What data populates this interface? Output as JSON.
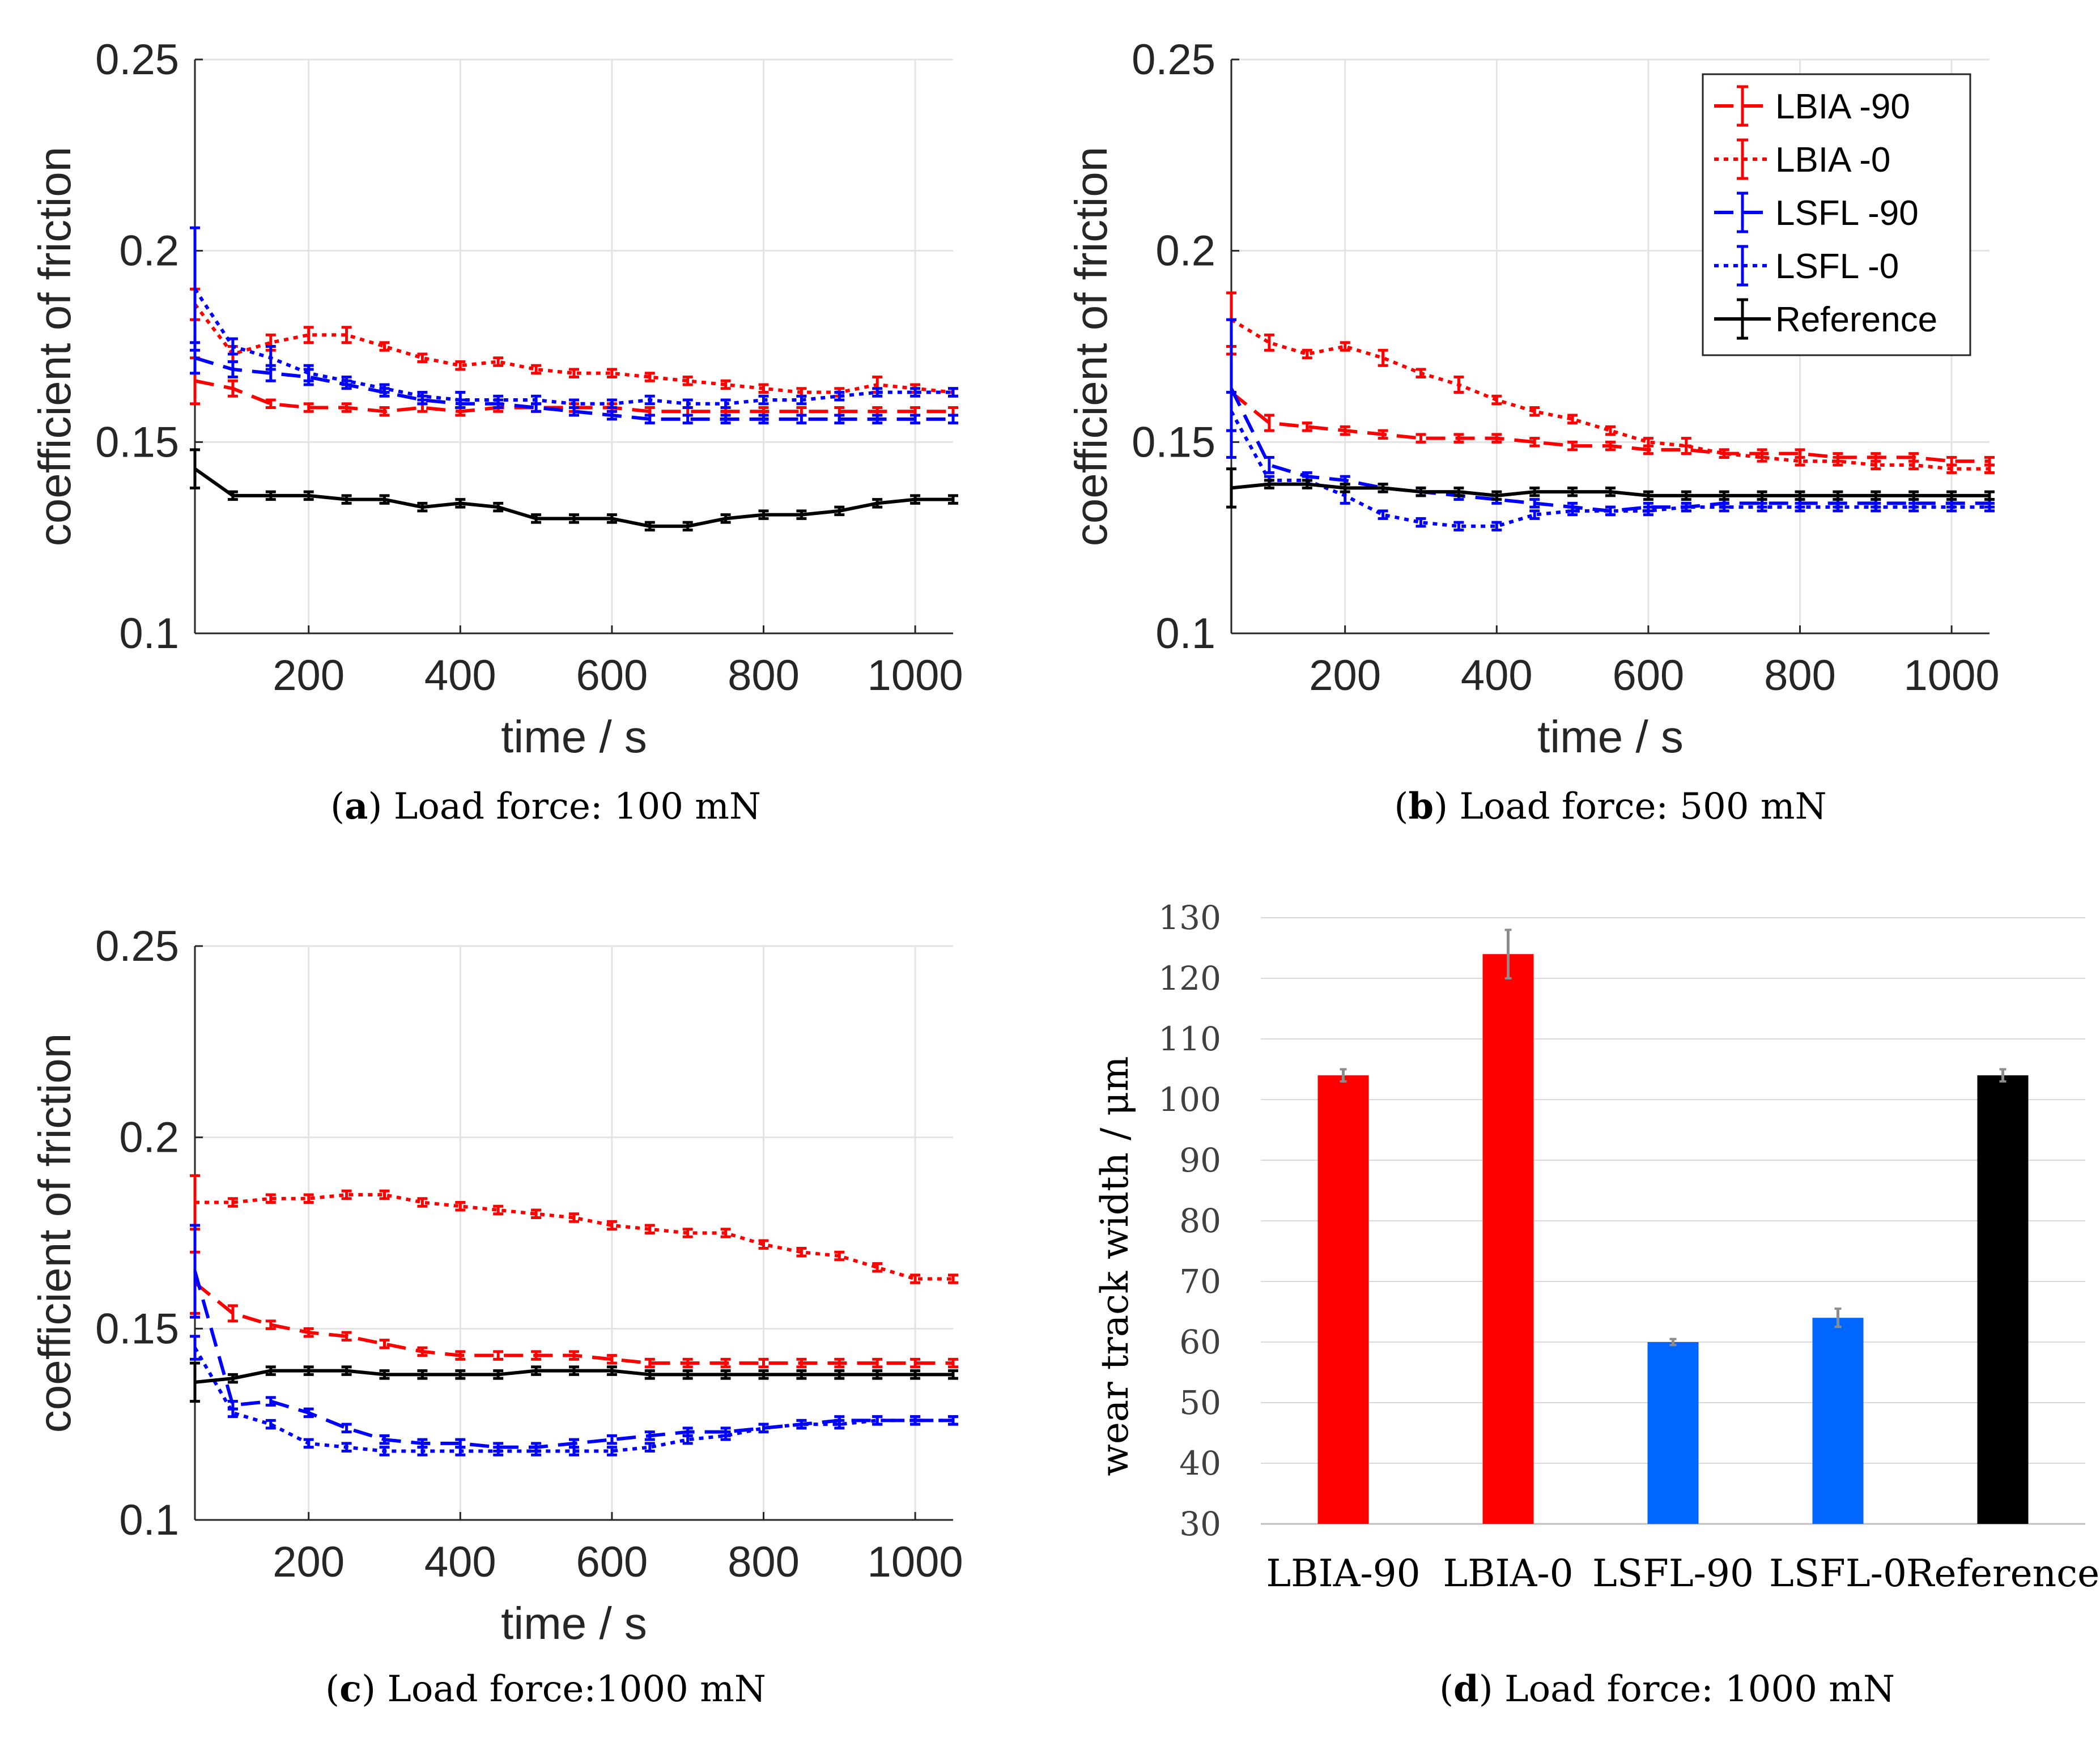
{
  "chart_data": [
    {
      "id": "a",
      "type": "line",
      "caption_letter": "a",
      "caption_text": "Load force: 100 mN",
      "xlabel": "time / s",
      "ylabel": "coefficient of friction",
      "xlim": [
        50,
        1050
      ],
      "ylim": [
        0.1,
        0.25
      ],
      "xticks": [
        200,
        400,
        600,
        800,
        1000
      ],
      "yticks": [
        0.1,
        0.15,
        0.2,
        0.25
      ],
      "ytick_labels": [
        "0.1",
        "0.15",
        "0.2",
        "0.25"
      ],
      "grid": true,
      "x": [
        50,
        100,
        150,
        200,
        250,
        300,
        350,
        400,
        450,
        500,
        550,
        600,
        650,
        700,
        750,
        800,
        850,
        900,
        950,
        1000,
        1050
      ],
      "series": [
        {
          "name": "LBIA -90",
          "color": "#ff0000",
          "dash": "dash",
          "values": [
            0.166,
            0.164,
            0.16,
            0.159,
            0.159,
            0.158,
            0.159,
            0.158,
            0.159,
            0.159,
            0.159,
            0.159,
            0.158,
            0.158,
            0.158,
            0.158,
            0.158,
            0.158,
            0.158,
            0.158,
            0.158
          ],
          "err": [
            0.006,
            0.002,
            0.001,
            0.001,
            0.001,
            0.001,
            0.001,
            0.001,
            0.001,
            0.001,
            0.001,
            0.001,
            0.001,
            0.001,
            0.001,
            0.001,
            0.001,
            0.001,
            0.001,
            0.001,
            0.001
          ]
        },
        {
          "name": "LBIA -0",
          "color": "#ff0000",
          "dash": "dot",
          "values": [
            0.186,
            0.173,
            0.176,
            0.178,
            0.178,
            0.175,
            0.172,
            0.17,
            0.171,
            0.169,
            0.168,
            0.168,
            0.167,
            0.166,
            0.165,
            0.164,
            0.163,
            0.163,
            0.165,
            0.164,
            0.163
          ],
          "err": [
            0.004,
            0.002,
            0.002,
            0.002,
            0.002,
            0.001,
            0.001,
            0.001,
            0.001,
            0.001,
            0.001,
            0.001,
            0.001,
            0.001,
            0.001,
            0.001,
            0.001,
            0.001,
            0.002,
            0.001,
            0.001
          ]
        },
        {
          "name": "LSFL -90",
          "color": "#0000ff",
          "dash": "dash",
          "values": [
            0.172,
            0.169,
            0.168,
            0.167,
            0.165,
            0.163,
            0.161,
            0.16,
            0.16,
            0.159,
            0.158,
            0.157,
            0.156,
            0.156,
            0.156,
            0.156,
            0.156,
            0.156,
            0.156,
            0.156,
            0.156
          ],
          "err": [
            0.004,
            0.002,
            0.002,
            0.002,
            0.001,
            0.001,
            0.001,
            0.001,
            0.001,
            0.001,
            0.001,
            0.001,
            0.001,
            0.001,
            0.001,
            0.001,
            0.001,
            0.001,
            0.001,
            0.001,
            0.001
          ]
        },
        {
          "name": "LSFL -0",
          "color": "#0000ff",
          "dash": "dot",
          "values": [
            0.19,
            0.175,
            0.172,
            0.168,
            0.166,
            0.164,
            0.162,
            0.161,
            0.161,
            0.161,
            0.16,
            0.16,
            0.161,
            0.16,
            0.16,
            0.161,
            0.161,
            0.162,
            0.163,
            0.163,
            0.163
          ],
          "err": [
            0.016,
            0.002,
            0.003,
            0.002,
            0.001,
            0.001,
            0.001,
            0.002,
            0.001,
            0.001,
            0.001,
            0.001,
            0.001,
            0.001,
            0.001,
            0.001,
            0.001,
            0.001,
            0.001,
            0.001,
            0.001
          ]
        },
        {
          "name": "Reference",
          "color": "#000000",
          "dash": "solid",
          "values": [
            0.143,
            0.136,
            0.136,
            0.136,
            0.135,
            0.135,
            0.133,
            0.134,
            0.133,
            0.13,
            0.13,
            0.13,
            0.128,
            0.128,
            0.13,
            0.131,
            0.131,
            0.132,
            0.134,
            0.135,
            0.135
          ],
          "err": [
            0.005,
            0.001,
            0.001,
            0.001,
            0.001,
            0.001,
            0.001,
            0.001,
            0.001,
            0.001,
            0.001,
            0.001,
            0.001,
            0.001,
            0.001,
            0.001,
            0.001,
            0.001,
            0.001,
            0.001,
            0.001
          ]
        }
      ]
    },
    {
      "id": "b",
      "type": "line",
      "caption_letter": "b",
      "caption_text": "Load force: 500 mN",
      "xlabel": "time / s",
      "ylabel": "coefficient of friction",
      "xlim": [
        50,
        1050
      ],
      "ylim": [
        0.1,
        0.25
      ],
      "xticks": [
        200,
        400,
        600,
        800,
        1000
      ],
      "yticks": [
        0.1,
        0.15,
        0.2,
        0.25
      ],
      "ytick_labels": [
        "0.1",
        "0.15",
        "0.2",
        "0.25"
      ],
      "grid": true,
      "legend": "top-right",
      "x": [
        50,
        100,
        150,
        200,
        250,
        300,
        350,
        400,
        450,
        500,
        550,
        600,
        650,
        700,
        750,
        800,
        850,
        900,
        950,
        1000,
        1050
      ],
      "series": [
        {
          "name": "LBIA -90",
          "color": "#ff0000",
          "dash": "dash",
          "values": [
            0.163,
            0.155,
            0.154,
            0.153,
            0.152,
            0.151,
            0.151,
            0.151,
            0.15,
            0.149,
            0.149,
            0.148,
            0.148,
            0.147,
            0.147,
            0.147,
            0.146,
            0.146,
            0.146,
            0.145,
            0.145
          ],
          "err": [
            0.01,
            0.002,
            0.001,
            0.001,
            0.001,
            0.001,
            0.001,
            0.001,
            0.001,
            0.001,
            0.001,
            0.001,
            0.001,
            0.001,
            0.001,
            0.001,
            0.001,
            0.001,
            0.001,
            0.001,
            0.001
          ]
        },
        {
          "name": "LBIA -0",
          "color": "#ff0000",
          "dash": "dot",
          "values": [
            0.182,
            0.176,
            0.173,
            0.175,
            0.172,
            0.168,
            0.165,
            0.161,
            0.158,
            0.156,
            0.153,
            0.15,
            0.149,
            0.147,
            0.146,
            0.145,
            0.145,
            0.144,
            0.144,
            0.143,
            0.143
          ],
          "err": [
            0.007,
            0.002,
            0.001,
            0.001,
            0.002,
            0.001,
            0.002,
            0.001,
            0.001,
            0.001,
            0.001,
            0.001,
            0.002,
            0.001,
            0.001,
            0.001,
            0.001,
            0.001,
            0.001,
            0.001,
            0.001
          ]
        },
        {
          "name": "LSFL -90",
          "color": "#0000ff",
          "dash": "dash",
          "values": [
            0.164,
            0.144,
            0.141,
            0.14,
            0.138,
            0.137,
            0.136,
            0.135,
            0.134,
            0.133,
            0.132,
            0.133,
            0.133,
            0.134,
            0.134,
            0.134,
            0.134,
            0.134,
            0.134,
            0.134,
            0.134
          ],
          "err": [
            0.018,
            0.002,
            0.001,
            0.001,
            0.001,
            0.001,
            0.001,
            0.001,
            0.001,
            0.001,
            0.001,
            0.001,
            0.001,
            0.001,
            0.001,
            0.001,
            0.001,
            0.001,
            0.001,
            0.001,
            0.001
          ]
        },
        {
          "name": "LSFL -0",
          "color": "#0000ff",
          "dash": "dot",
          "values": [
            0.158,
            0.14,
            0.14,
            0.136,
            0.131,
            0.129,
            0.128,
            0.128,
            0.131,
            0.132,
            0.132,
            0.132,
            0.133,
            0.133,
            0.133,
            0.133,
            0.133,
            0.133,
            0.133,
            0.133,
            0.133
          ],
          "err": [
            0.005,
            0.001,
            0.001,
            0.002,
            0.001,
            0.001,
            0.001,
            0.001,
            0.001,
            0.001,
            0.001,
            0.001,
            0.001,
            0.001,
            0.001,
            0.001,
            0.001,
            0.001,
            0.001,
            0.001,
            0.001
          ]
        },
        {
          "name": "Reference",
          "color": "#000000",
          "dash": "solid",
          "values": [
            0.138,
            0.139,
            0.139,
            0.138,
            0.138,
            0.137,
            0.137,
            0.136,
            0.137,
            0.137,
            0.137,
            0.136,
            0.136,
            0.136,
            0.136,
            0.136,
            0.136,
            0.136,
            0.136,
            0.136,
            0.136
          ],
          "err": [
            0.005,
            0.001,
            0.001,
            0.001,
            0.001,
            0.001,
            0.001,
            0.001,
            0.001,
            0.001,
            0.001,
            0.001,
            0.001,
            0.001,
            0.001,
            0.001,
            0.001,
            0.001,
            0.001,
            0.001,
            0.001
          ]
        }
      ]
    },
    {
      "id": "c",
      "type": "line",
      "caption_letter": "c",
      "caption_text": "Load force:1000 mN",
      "xlabel": "time / s",
      "ylabel": "coefficient of friction",
      "xlim": [
        50,
        1050
      ],
      "ylim": [
        0.1,
        0.25
      ],
      "xticks": [
        200,
        400,
        600,
        800,
        1000
      ],
      "yticks": [
        0.1,
        0.15,
        0.2,
        0.25
      ],
      "ytick_labels": [
        "0.1",
        "0.15",
        "0.2",
        "0.25"
      ],
      "grid": true,
      "x": [
        50,
        100,
        150,
        200,
        250,
        300,
        350,
        400,
        450,
        500,
        550,
        600,
        650,
        700,
        750,
        800,
        850,
        900,
        950,
        1000,
        1050
      ],
      "series": [
        {
          "name": "LBIA -90",
          "color": "#ff0000",
          "dash": "dash",
          "values": [
            0.162,
            0.154,
            0.151,
            0.149,
            0.148,
            0.146,
            0.144,
            0.143,
            0.143,
            0.143,
            0.143,
            0.142,
            0.141,
            0.141,
            0.141,
            0.141,
            0.141,
            0.141,
            0.141,
            0.141,
            0.141
          ],
          "err": [
            0.008,
            0.002,
            0.001,
            0.001,
            0.001,
            0.001,
            0.001,
            0.001,
            0.001,
            0.001,
            0.001,
            0.001,
            0.001,
            0.001,
            0.001,
            0.001,
            0.001,
            0.001,
            0.001,
            0.001,
            0.001
          ]
        },
        {
          "name": "LBIA -0",
          "color": "#ff0000",
          "dash": "dot",
          "values": [
            0.183,
            0.183,
            0.184,
            0.184,
            0.185,
            0.185,
            0.183,
            0.182,
            0.181,
            0.18,
            0.179,
            0.177,
            0.176,
            0.175,
            0.175,
            0.172,
            0.17,
            0.169,
            0.166,
            0.163,
            0.163
          ],
          "err": [
            0.007,
            0.001,
            0.001,
            0.001,
            0.001,
            0.001,
            0.001,
            0.001,
            0.001,
            0.001,
            0.001,
            0.001,
            0.001,
            0.001,
            0.001,
            0.001,
            0.001,
            0.001,
            0.001,
            0.001,
            0.001
          ]
        },
        {
          "name": "LSFL -90",
          "color": "#0000ff",
          "dash": "dash",
          "values": [
            0.165,
            0.13,
            0.131,
            0.128,
            0.124,
            0.121,
            0.12,
            0.12,
            0.119,
            0.119,
            0.12,
            0.121,
            0.122,
            0.123,
            0.123,
            0.124,
            0.125,
            0.126,
            0.126,
            0.126,
            0.126
          ],
          "err": [
            0.012,
            0.001,
            0.001,
            0.001,
            0.001,
            0.001,
            0.001,
            0.001,
            0.001,
            0.001,
            0.001,
            0.001,
            0.001,
            0.001,
            0.001,
            0.001,
            0.001,
            0.001,
            0.001,
            0.001,
            0.001
          ]
        },
        {
          "name": "LSFL -0",
          "color": "#0000ff",
          "dash": "dot",
          "values": [
            0.145,
            0.128,
            0.125,
            0.12,
            0.119,
            0.118,
            0.118,
            0.118,
            0.118,
            0.118,
            0.118,
            0.118,
            0.119,
            0.121,
            0.122,
            0.124,
            0.125,
            0.125,
            0.126,
            0.126,
            0.126
          ],
          "err": [
            0.003,
            0.001,
            0.001,
            0.001,
            0.001,
            0.001,
            0.001,
            0.001,
            0.001,
            0.001,
            0.001,
            0.001,
            0.001,
            0.001,
            0.001,
            0.001,
            0.001,
            0.001,
            0.001,
            0.001,
            0.001
          ]
        },
        {
          "name": "Reference",
          "color": "#000000",
          "dash": "solid",
          "values": [
            0.136,
            0.137,
            0.139,
            0.139,
            0.139,
            0.138,
            0.138,
            0.138,
            0.138,
            0.139,
            0.139,
            0.139,
            0.138,
            0.138,
            0.138,
            0.138,
            0.138,
            0.138,
            0.138,
            0.138,
            0.138
          ],
          "err": [
            0.005,
            0.001,
            0.001,
            0.001,
            0.001,
            0.001,
            0.001,
            0.001,
            0.001,
            0.001,
            0.001,
            0.001,
            0.001,
            0.001,
            0.001,
            0.001,
            0.001,
            0.001,
            0.001,
            0.001,
            0.001
          ]
        }
      ]
    },
    {
      "id": "d",
      "type": "bar",
      "caption_letter": "d",
      "caption_text": "Load force: 1000 mN",
      "ylabel": "wear track width / μm",
      "ylim": [
        30,
        130
      ],
      "yticks": [
        30,
        40,
        50,
        60,
        70,
        80,
        90,
        100,
        110,
        120,
        130
      ],
      "categories": [
        "LBIA-90",
        "LBIA-0",
        "LSFL-90",
        "LSFL-0",
        "Reference"
      ],
      "values": [
        104,
        124,
        60,
        64,
        104
      ],
      "err": [
        1,
        4,
        0.5,
        1.5,
        1
      ],
      "colors": [
        "#ff0000",
        "#ff0000",
        "#0066ff",
        "#0066ff",
        "#000000"
      ]
    }
  ]
}
